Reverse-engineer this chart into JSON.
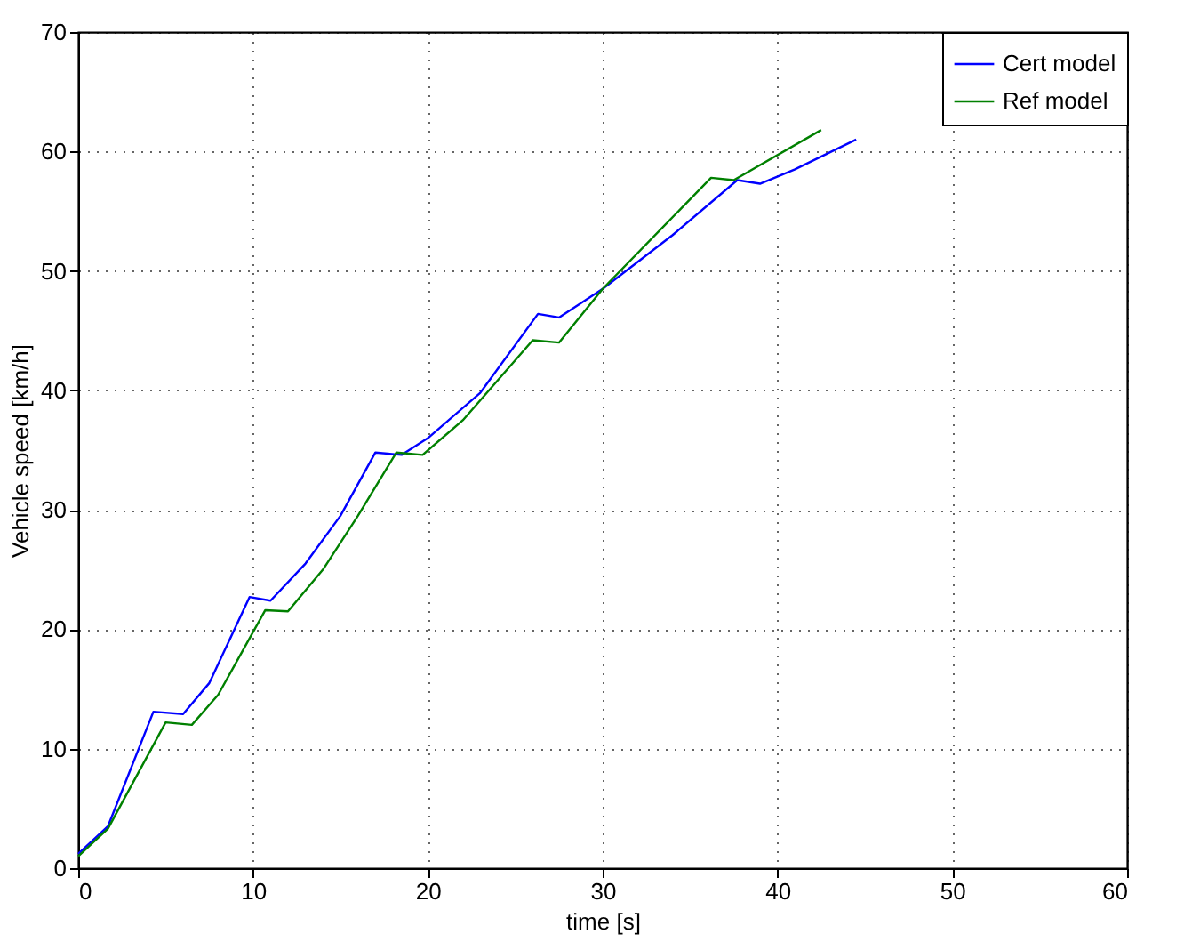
{
  "chart_data": {
    "type": "line",
    "xlabel": "time [s]",
    "ylabel": "Vehicle speed [km/h]",
    "xlim": [
      0,
      60
    ],
    "xticks": [
      0,
      10,
      20,
      30,
      40,
      50,
      60
    ],
    "ylim": [
      0,
      70
    ],
    "yticks": [
      0,
      10,
      20,
      30,
      40,
      50,
      60,
      70
    ],
    "grid": true,
    "legend": "top right",
    "line_style": "solid",
    "marker": "none",
    "series": [
      {
        "name": "Cert model",
        "color": "#0000ff",
        "x": [
          0,
          1.7,
          4.3,
          6,
          7.5,
          9.8,
          11,
          13,
          15,
          17,
          18.5,
          20,
          23,
          26.3,
          27.5,
          30,
          34,
          37.7,
          39,
          41,
          44.5
        ],
        "values": [
          1.2,
          3.5,
          13.1,
          12.9,
          15.5,
          22.7,
          22.4,
          25.5,
          29.5,
          34.8,
          34.6,
          36,
          39.8,
          46.4,
          46.1,
          48.5,
          53,
          57.6,
          57.3,
          58.5,
          61
        ]
      },
      {
        "name": "Ref model",
        "color": "#008000",
        "x": [
          0,
          1.7,
          5,
          6.5,
          8,
          10.7,
          12,
          14,
          16,
          18.2,
          19.7,
          22,
          26,
          27.5,
          30,
          36.2,
          37.5,
          42.5
        ],
        "values": [
          1,
          3.3,
          12.2,
          12,
          14.5,
          21.6,
          21.5,
          25,
          29.5,
          34.8,
          34.6,
          37.5,
          44.2,
          44,
          48.5,
          57.8,
          57.6,
          61.8
        ]
      }
    ]
  }
}
